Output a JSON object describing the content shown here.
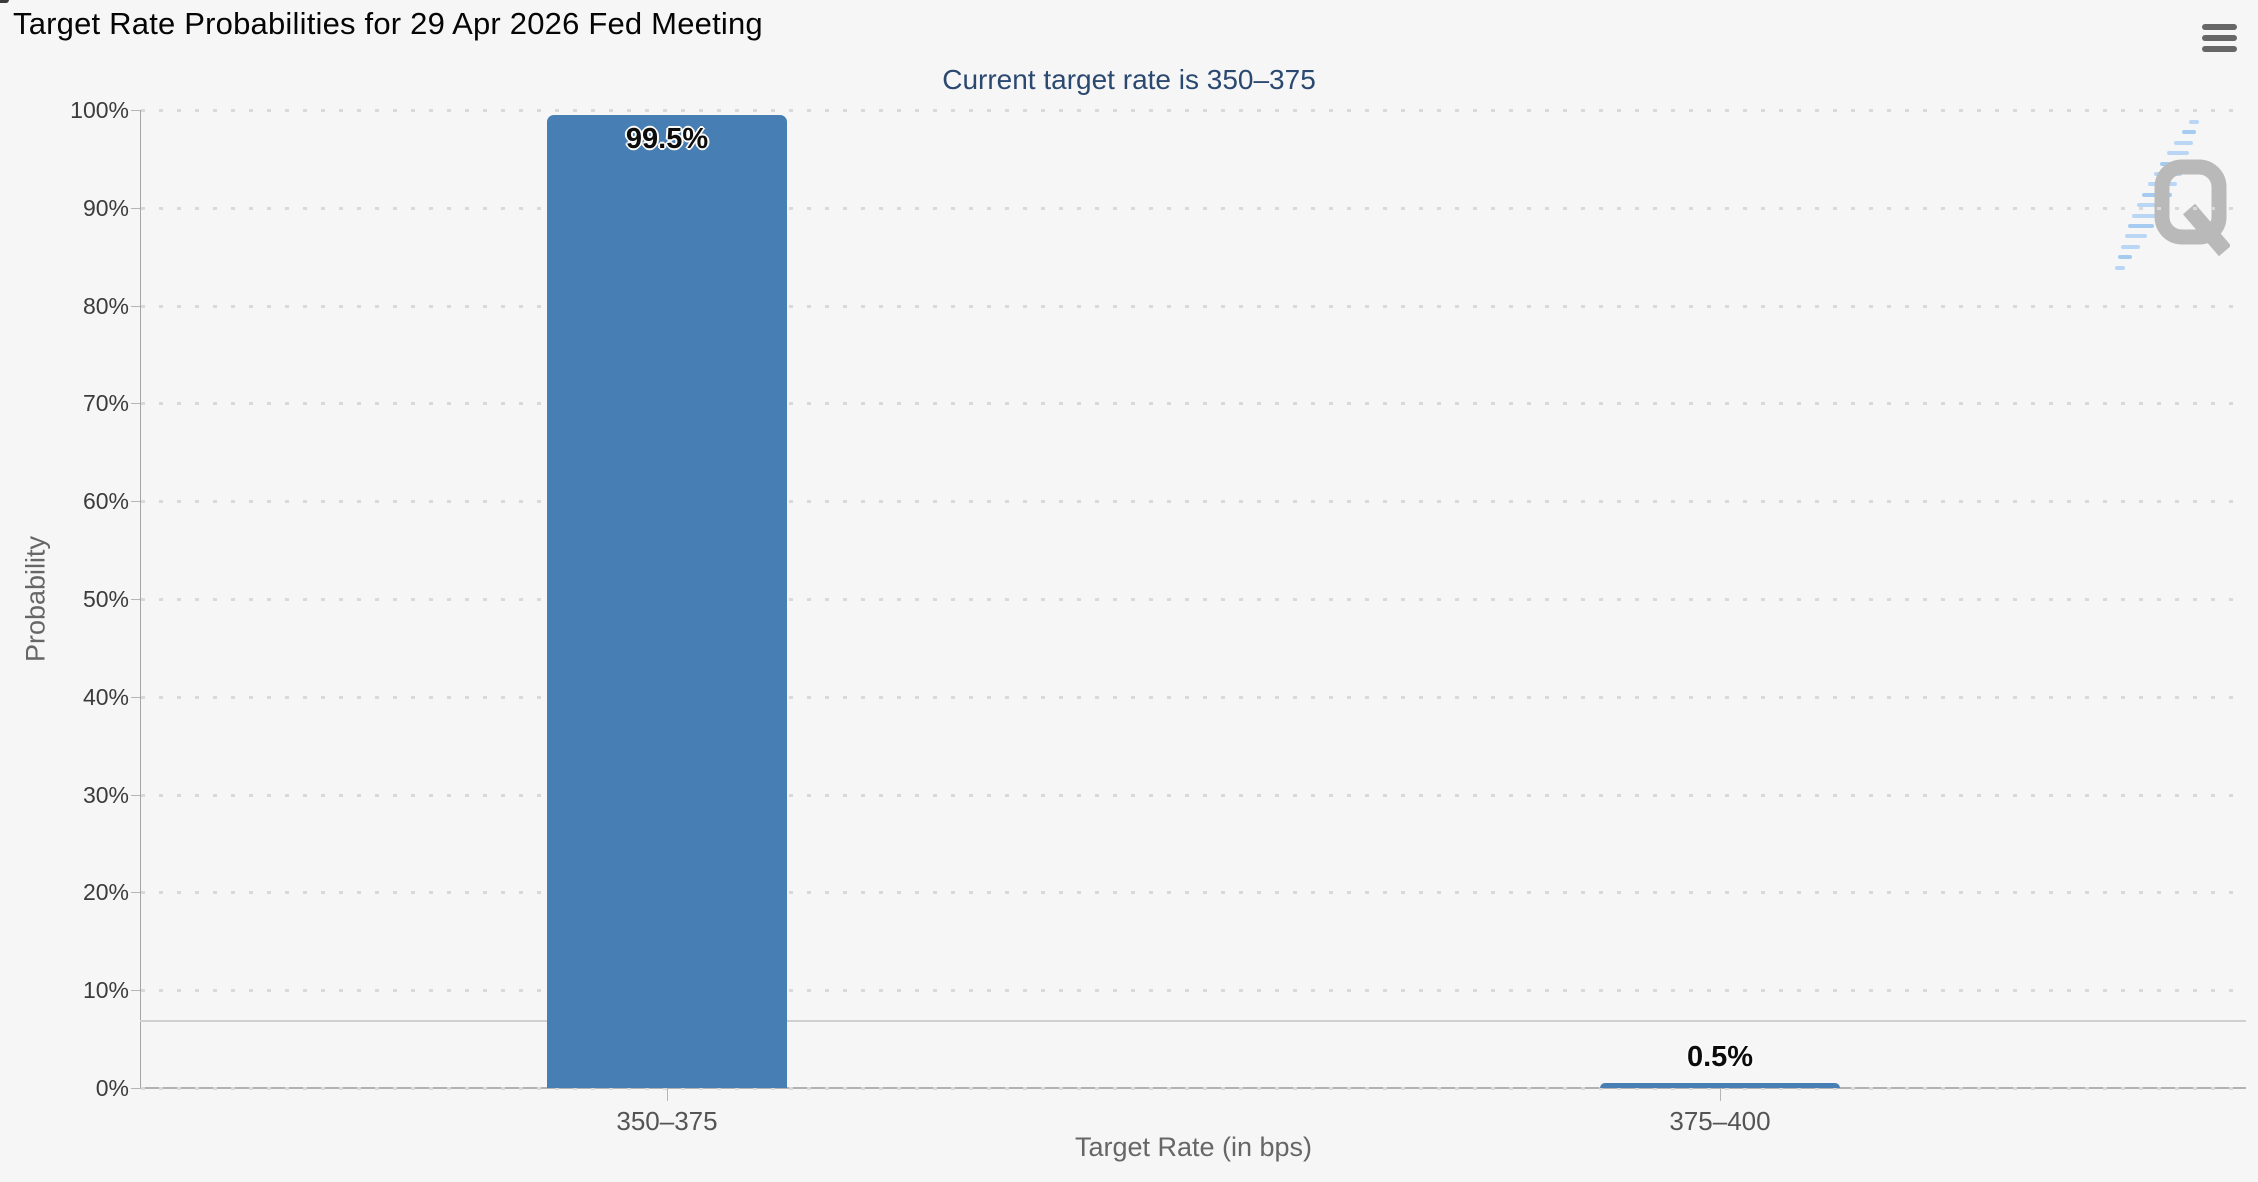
{
  "header": {
    "title": "Target Rate Probabilities for 29 Apr 2026 Fed Meeting",
    "menu_icon": "hamburger-menu"
  },
  "chart_data": {
    "type": "bar",
    "title": "Target Rate Probabilities for 29 Apr 2026 Fed Meeting",
    "subtitle": "Current target rate is 350–375",
    "categories": [
      "350–375",
      "375–400"
    ],
    "values": [
      99.5,
      0.5
    ],
    "value_labels": [
      "99.5%",
      "0.5%"
    ],
    "xlabel": "Target Rate (in bps)",
    "ylabel": "Probability",
    "ylim": [
      0,
      100
    ],
    "ytick_step": 10,
    "yticks": [
      "0%",
      "10%",
      "20%",
      "30%",
      "40%",
      "50%",
      "60%",
      "70%",
      "80%",
      "90%",
      "100%"
    ],
    "grid": "dotted-horizontal",
    "legend": "none",
    "reference_line_y": 6.8,
    "bar_color": "#477eb3",
    "subtitle_color": "#2b4970",
    "watermark_letter": "Q"
  }
}
